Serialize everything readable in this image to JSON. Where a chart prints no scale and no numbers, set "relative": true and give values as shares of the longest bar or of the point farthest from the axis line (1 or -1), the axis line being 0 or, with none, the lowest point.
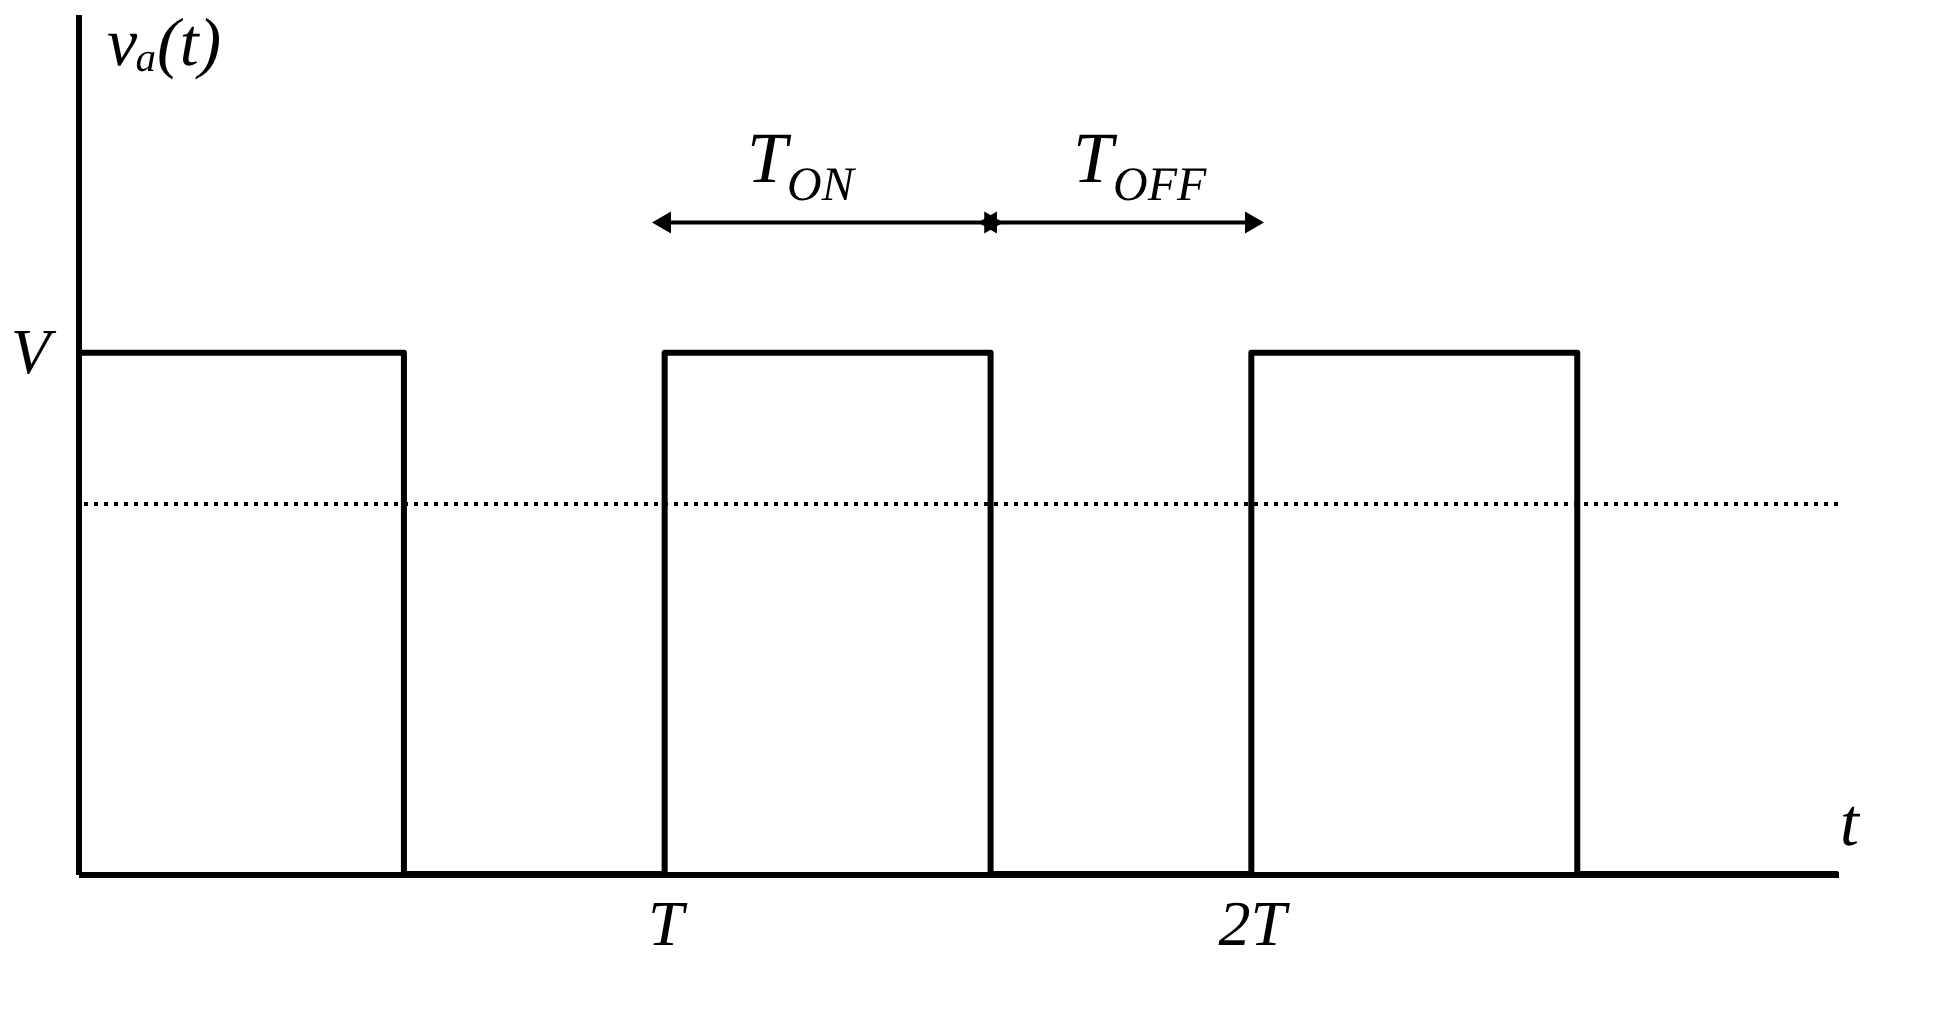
{
  "chart_data": {
    "type": "step",
    "relative": true,
    "categories": [
      null,
      null,
      null,
      null,
      null,
      null,
      null,
      null,
      null,
      "T",
      null,
      null,
      null,
      null,
      null,
      null,
      null,
      null,
      "2T",
      null,
      null,
      null,
      null,
      null,
      null,
      null,
      null,
      null
    ],
    "series": [
      {
        "color": "#000000",
        "values": [
          1,
          1,
          1,
          1,
          1,
          0,
          0,
          0,
          0,
          1,
          1,
          1,
          1,
          1,
          0,
          0,
          0,
          0,
          1,
          1,
          1,
          1,
          1,
          0,
          0,
          0,
          0,
          0
        ]
      }
    ],
    "xlabel": "t",
    "ylabel": "vₐ(t)",
    "ref_lines": [
      {
        "axis": "y",
        "value": 0.71,
        "line_style": "dotted",
        "color": "#000000"
      }
    ],
    "annotations": [
      "V",
      "T$_{ON}$",
      "T$_{OFF}$"
    ],
    "marker": "none",
    "line_style": "solid"
  }
}
